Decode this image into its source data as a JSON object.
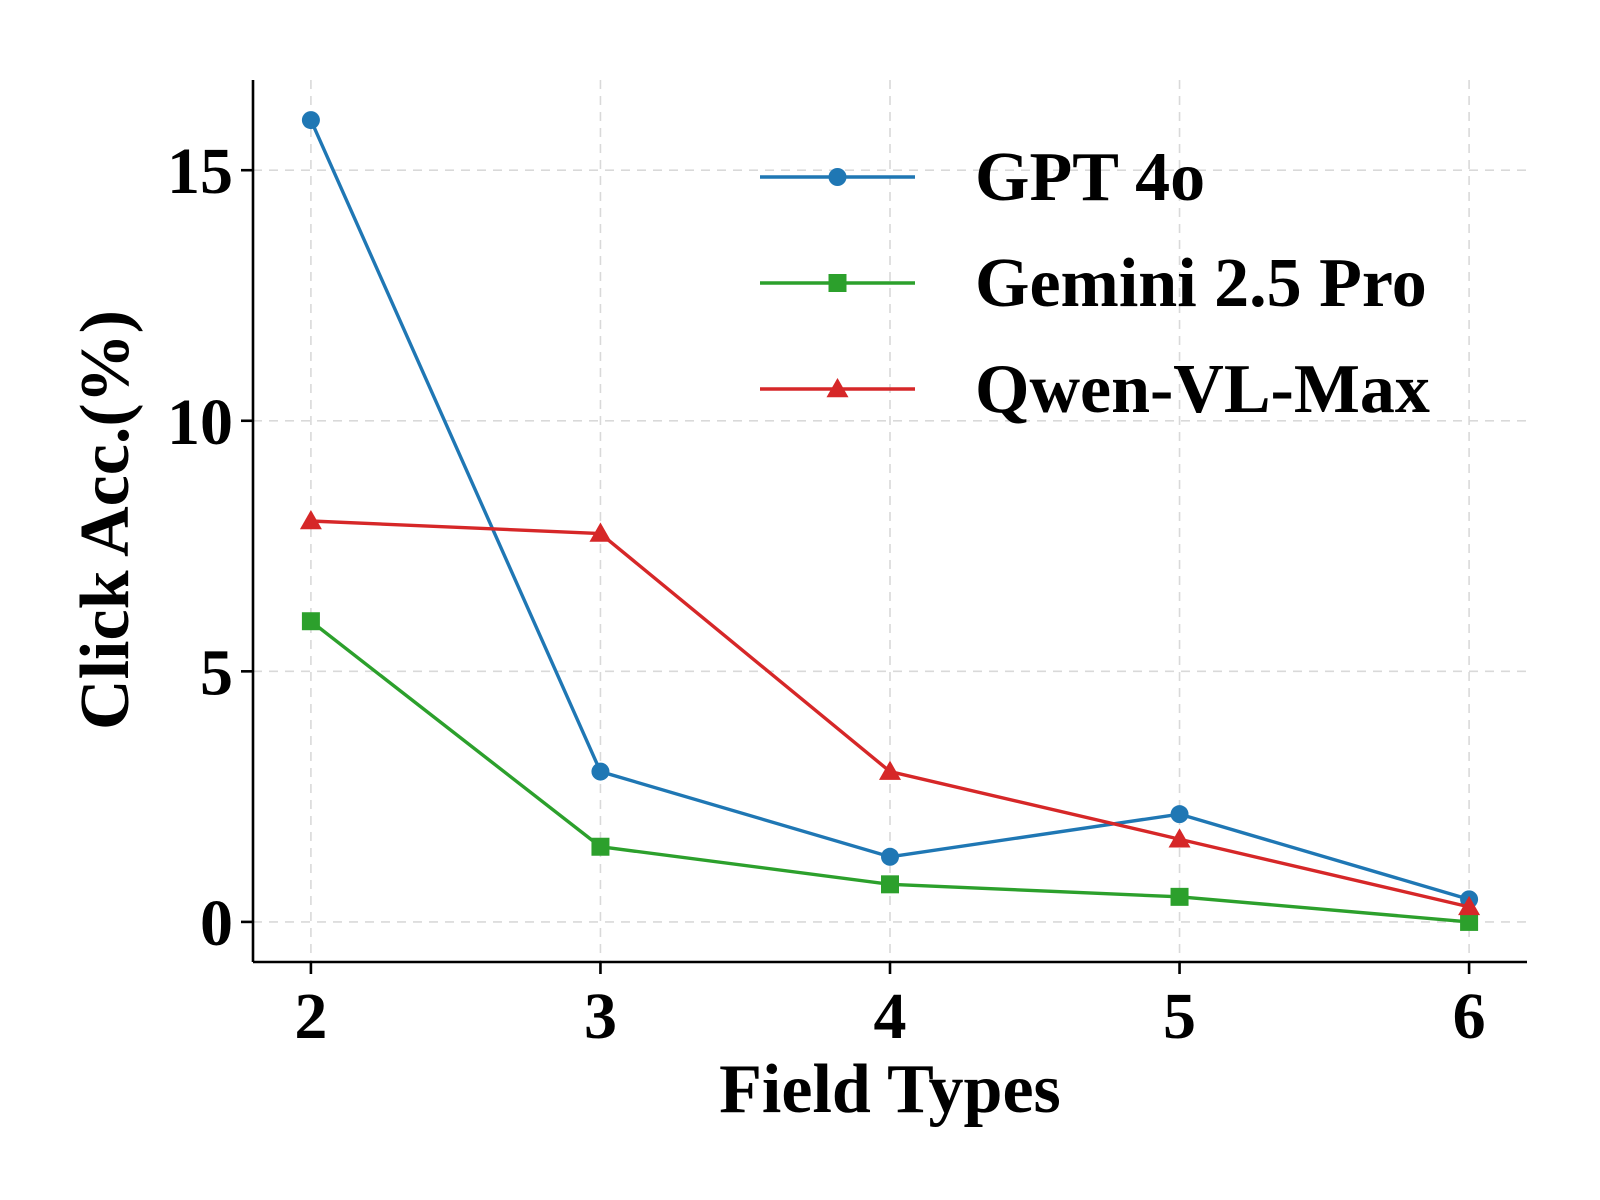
{
  "chart_data": {
    "type": "line",
    "xlabel": "Field Types",
    "ylabel": "Click Acc.(%)",
    "x": [
      2,
      3,
      4,
      5,
      6
    ],
    "xticks": [
      "2",
      "3",
      "4",
      "5",
      "6"
    ],
    "yticks": [
      "0",
      "5",
      "10",
      "15"
    ],
    "ytick_values": [
      0,
      5,
      10,
      15
    ],
    "xlim": [
      1.8,
      6.2
    ],
    "ylim": [
      -0.8,
      16.8
    ],
    "grid": true,
    "legend_position": "top-right",
    "series": [
      {
        "name": "GPT 4o",
        "color": "#1f77b4",
        "marker": "circle",
        "values": [
          16.0,
          3.0,
          1.3,
          2.15,
          0.45
        ]
      },
      {
        "name": "Gemini 2.5 Pro",
        "color": "#2ca02c",
        "marker": "square",
        "values": [
          6.0,
          1.5,
          0.75,
          0.5,
          0.0
        ]
      },
      {
        "name": "Qwen-VL-Max",
        "color": "#d62728",
        "marker": "triangle",
        "values": [
          8.0,
          7.75,
          3.0,
          1.65,
          0.3
        ]
      }
    ]
  }
}
